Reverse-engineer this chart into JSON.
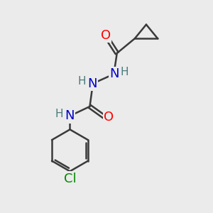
{
  "background_color": "#ebebeb",
  "bond_color": "#3a3a3a",
  "bond_width": 1.8,
  "atom_colors": {
    "O": "#ff0000",
    "N": "#0000cc",
    "Cl": "#008800",
    "H": "#4a7a7a"
  },
  "font_size_main": 13,
  "font_size_H": 11,
  "font_size_Cl": 13
}
